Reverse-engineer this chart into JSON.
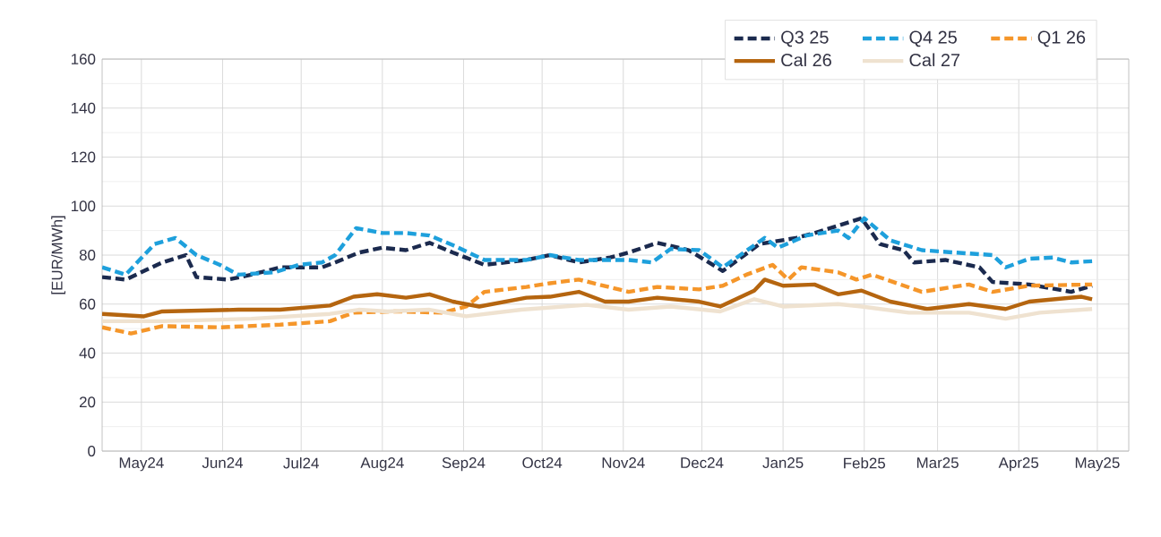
{
  "chart_data": {
    "type": "line",
    "ylabel": "[EUR/MWh]",
    "xlim": [
      "2024-04-16",
      "2025-05-13"
    ],
    "ylim": [
      0,
      160
    ],
    "yticks": [
      0,
      20,
      40,
      60,
      80,
      100,
      120,
      140,
      160
    ],
    "xticks": [
      {
        "value": "2024-05-01",
        "label": "May24"
      },
      {
        "value": "2024-06-01",
        "label": "Jun24"
      },
      {
        "value": "2024-07-01",
        "label": "Jul24"
      },
      {
        "value": "2024-08-01",
        "label": "Aug24"
      },
      {
        "value": "2024-09-01",
        "label": "Sep24"
      },
      {
        "value": "2024-10-01",
        "label": "Oct24"
      },
      {
        "value": "2024-11-01",
        "label": "Nov24"
      },
      {
        "value": "2024-12-01",
        "label": "Dec24"
      },
      {
        "value": "2025-01-01",
        "label": "Jan25"
      },
      {
        "value": "2025-02-01",
        "label": "Feb25"
      },
      {
        "value": "2025-03-01",
        "label": "Mar25"
      },
      {
        "value": "2025-04-01",
        "label": "Apr25"
      },
      {
        "value": "2025-05-01",
        "label": "May25"
      }
    ],
    "grid": true,
    "legend": "top right",
    "marker": "none",
    "series": [
      {
        "name": "Q3 25",
        "color": "#1b2a4e",
        "line_style": "dashed",
        "x": [
          "2024-04-16",
          "2024-04-25",
          "2024-05-09",
          "2024-05-18",
          "2024-05-22",
          "2024-06-03",
          "2024-06-12",
          "2024-06-23",
          "2024-07-09",
          "2024-07-14",
          "2024-07-23",
          "2024-08-01",
          "2024-08-10",
          "2024-08-19",
          "2024-08-28",
          "2024-09-09",
          "2024-09-25",
          "2024-10-04",
          "2024-10-15",
          "2024-10-27",
          "2024-11-03",
          "2024-11-14",
          "2024-11-26",
          "2024-12-09",
          "2024-12-23",
          "2025-01-06",
          "2025-01-13",
          "2025-01-22",
          "2025-01-31",
          "2025-02-07",
          "2025-02-16",
          "2025-02-20",
          "2025-03-04",
          "2025-03-17",
          "2025-03-22",
          "2025-04-05",
          "2025-04-21",
          "2025-04-29"
        ],
        "values": [
          71,
          70,
          77,
          80,
          71,
          70,
          72,
          75,
          75,
          77,
          81,
          83,
          82,
          85,
          81,
          76,
          78,
          80,
          77,
          79,
          81,
          85,
          82,
          73.5,
          84.5,
          87,
          89,
          92,
          95,
          84.5,
          82,
          77,
          78,
          75,
          69,
          68,
          65,
          67.5
        ]
      },
      {
        "name": "Q4 25",
        "color": "#1ea0dc",
        "line_style": "dashed",
        "x": [
          "2024-04-16",
          "2024-04-25",
          "2024-05-06",
          "2024-05-14",
          "2024-05-22",
          "2024-05-31",
          "2024-06-07",
          "2024-06-21",
          "2024-06-30",
          "2024-07-09",
          "2024-07-14",
          "2024-07-22",
          "2024-08-01",
          "2024-08-10",
          "2024-08-19",
          "2024-08-28",
          "2024-09-09",
          "2024-09-25",
          "2024-10-04",
          "2024-10-15",
          "2024-10-27",
          "2024-11-03",
          "2024-11-12",
          "2024-11-19",
          "2024-11-30",
          "2024-12-09",
          "2024-12-25",
          "2024-12-30",
          "2025-01-10",
          "2025-01-22",
          "2025-01-26",
          "2025-02-01",
          "2025-02-11",
          "2025-02-23",
          "2025-03-08",
          "2025-03-22",
          "2025-03-27",
          "2025-04-05",
          "2025-04-14",
          "2025-04-21",
          "2025-04-29"
        ],
        "values": [
          75,
          72,
          84.5,
          87,
          80,
          76,
          72,
          73,
          76,
          77,
          80,
          91,
          89,
          89,
          88,
          84,
          78,
          78,
          80,
          78,
          78,
          78,
          77,
          82.5,
          82,
          75,
          87,
          83,
          88,
          90,
          87,
          95,
          86,
          82,
          81,
          80,
          75,
          78.5,
          79,
          77,
          77.5
        ]
      },
      {
        "name": "Q1 26",
        "color": "#f5962a",
        "line_style": "dashed",
        "x": [
          "2024-04-16",
          "2024-04-27",
          "2024-05-09",
          "2024-05-31",
          "2024-06-23",
          "2024-07-12",
          "2024-07-21",
          "2024-08-06",
          "2024-08-24",
          "2024-09-02",
          "2024-09-09",
          "2024-09-25",
          "2024-10-04",
          "2024-10-15",
          "2024-11-03",
          "2024-11-14",
          "2024-11-30",
          "2024-12-09",
          "2024-12-18",
          "2024-12-28",
          "2025-01-03",
          "2025-01-08",
          "2025-01-22",
          "2025-01-29",
          "2025-02-04",
          "2025-02-23",
          "2025-03-13",
          "2025-03-22",
          "2025-04-05",
          "2025-04-29"
        ],
        "values": [
          50.5,
          48,
          51,
          50.5,
          51.6,
          53,
          56.5,
          57,
          56.5,
          59,
          65,
          67,
          68.5,
          70,
          65,
          67,
          66,
          67.5,
          72,
          76,
          70,
          75,
          73,
          70,
          72,
          65,
          68,
          65,
          67.5,
          68
        ]
      },
      {
        "name": "Cal 26",
        "color": "#b5650f",
        "line_style": "solid",
        "x": [
          "2024-04-16",
          "2024-05-02",
          "2024-05-09",
          "2024-06-07",
          "2024-06-23",
          "2024-07-12",
          "2024-07-21",
          "2024-07-30",
          "2024-08-10",
          "2024-08-19",
          "2024-08-28",
          "2024-09-07",
          "2024-09-25",
          "2024-10-04",
          "2024-10-15",
          "2024-10-25",
          "2024-11-03",
          "2024-11-14",
          "2024-11-30",
          "2024-12-08",
          "2024-12-21",
          "2024-12-25",
          "2025-01-01",
          "2025-01-13",
          "2025-01-22",
          "2025-01-31",
          "2025-02-11",
          "2025-02-25",
          "2025-03-13",
          "2025-03-27",
          "2025-04-05",
          "2025-04-25",
          "2025-04-29"
        ],
        "values": [
          56,
          55,
          57,
          57.7,
          57.7,
          59.4,
          63,
          64,
          62.6,
          64,
          61,
          59,
          62.6,
          63,
          65,
          61,
          61,
          62.6,
          61,
          59,
          65.5,
          70,
          67.5,
          68,
          64,
          65.5,
          61,
          58,
          60,
          58,
          61,
          63,
          62
        ]
      },
      {
        "name": "Cal 27",
        "color": "#efe2d0",
        "line_style": "solid",
        "x": [
          "2024-04-16",
          "2024-05-09",
          "2024-06-12",
          "2024-07-12",
          "2024-07-23",
          "2024-08-03",
          "2024-08-19",
          "2024-09-02",
          "2024-09-23",
          "2024-10-18",
          "2024-11-03",
          "2024-11-19",
          "2024-12-08",
          "2024-12-21",
          "2025-01-01",
          "2025-01-22",
          "2025-01-31",
          "2025-02-18",
          "2025-03-13",
          "2025-03-27",
          "2025-04-09",
          "2025-04-29"
        ],
        "values": [
          53,
          53,
          54,
          56,
          57.7,
          57,
          57.7,
          55,
          57.7,
          59.7,
          57.7,
          59,
          57,
          62,
          59,
          60,
          59,
          56.5,
          56.5,
          54,
          56.5,
          58
        ]
      }
    ]
  }
}
